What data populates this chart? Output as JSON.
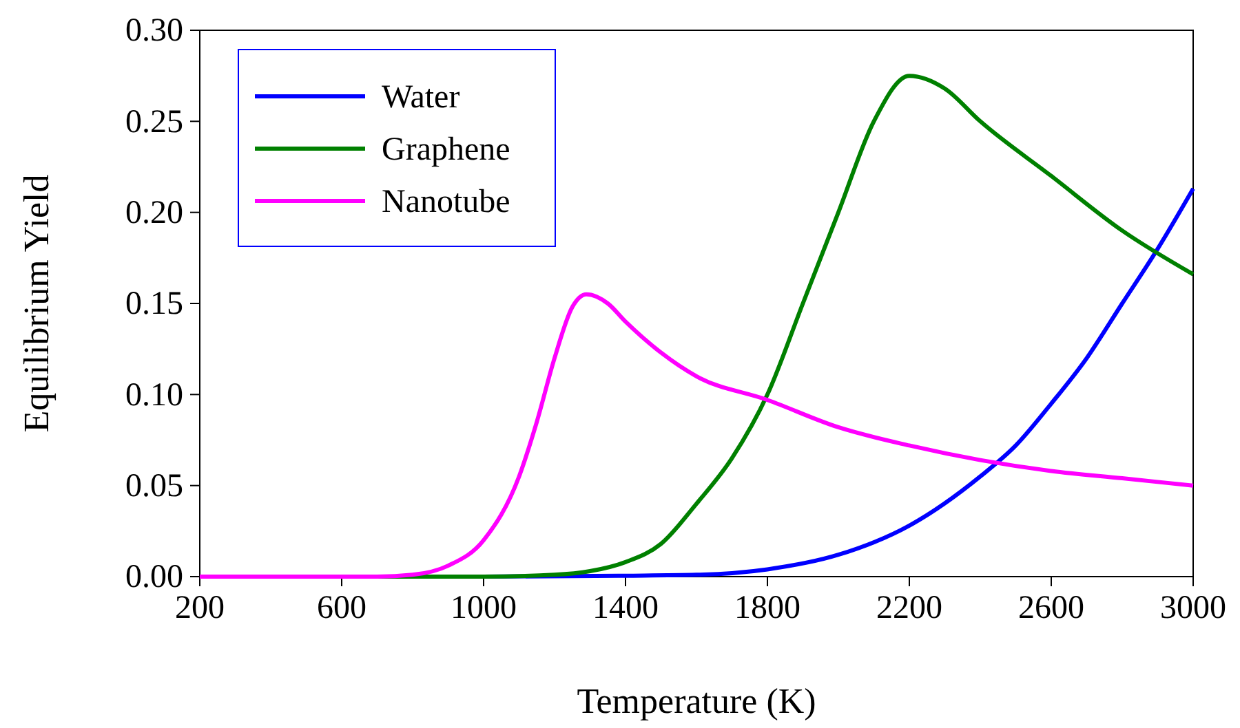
{
  "chart_data": {
    "type": "line",
    "xlabel": "Temperature (K)",
    "ylabel": "Equilibrium Yield",
    "xlim": [
      200,
      3000
    ],
    "xticks": [
      200,
      600,
      1000,
      1400,
      1800,
      2200,
      2600,
      3000
    ],
    "ylim": [
      0,
      0.3
    ],
    "yticks": [
      {
        "value": 0,
        "label": "0.00"
      },
      {
        "value": 0.05,
        "label": "0.05"
      },
      {
        "value": 0.1,
        "label": "0.10"
      },
      {
        "value": 0.15,
        "label": "0.15"
      },
      {
        "value": 0.2,
        "label": "0.20"
      },
      {
        "value": 0.25,
        "label": "0.25"
      },
      {
        "value": 0.3,
        "label": "0.30"
      }
    ],
    "grid": false,
    "legend": "top left",
    "marker": "none",
    "line_style": "solid",
    "series": [
      {
        "name": "Water",
        "color": "#0000ff",
        "x": [
          200,
          1000,
          1400,
          1600,
          1800,
          2000,
          2200,
          2400,
          2500,
          2600,
          2700,
          2800,
          2900,
          3000
        ],
        "values": [
          0,
          0,
          0.0005,
          0.001,
          0.004,
          0.012,
          0.028,
          0.055,
          0.072,
          0.095,
          0.12,
          0.15,
          0.18,
          0.213
        ]
      },
      {
        "name": "Graphene",
        "color": "#008000",
        "x": [
          200,
          1000,
          1200,
          1300,
          1400,
          1500,
          1600,
          1700,
          1800,
          1900,
          2000,
          2100,
          2200,
          2300,
          2400,
          2600,
          2800,
          3000
        ],
        "values": [
          0,
          0,
          0.001,
          0.003,
          0.008,
          0.018,
          0.04,
          0.065,
          0.1,
          0.15,
          0.2,
          0.25,
          0.275,
          0.268,
          0.25,
          0.22,
          0.19,
          0.166
        ]
      },
      {
        "name": "Nanotube",
        "color": "#ff00ff",
        "x": [
          200,
          700,
          800,
          900,
          1000,
          1100,
          1150,
          1200,
          1250,
          1290,
          1350,
          1400,
          1500,
          1600,
          1800,
          2000,
          2200,
          2400,
          2600,
          2800,
          3000
        ],
        "values": [
          0,
          0,
          0.001,
          0.006,
          0.02,
          0.055,
          0.085,
          0.12,
          0.148,
          0.155,
          0.15,
          0.14,
          0.123,
          0.11,
          0.097,
          0.082,
          0.072,
          0.064,
          0.058,
          0.054,
          0.05
        ]
      }
    ]
  }
}
